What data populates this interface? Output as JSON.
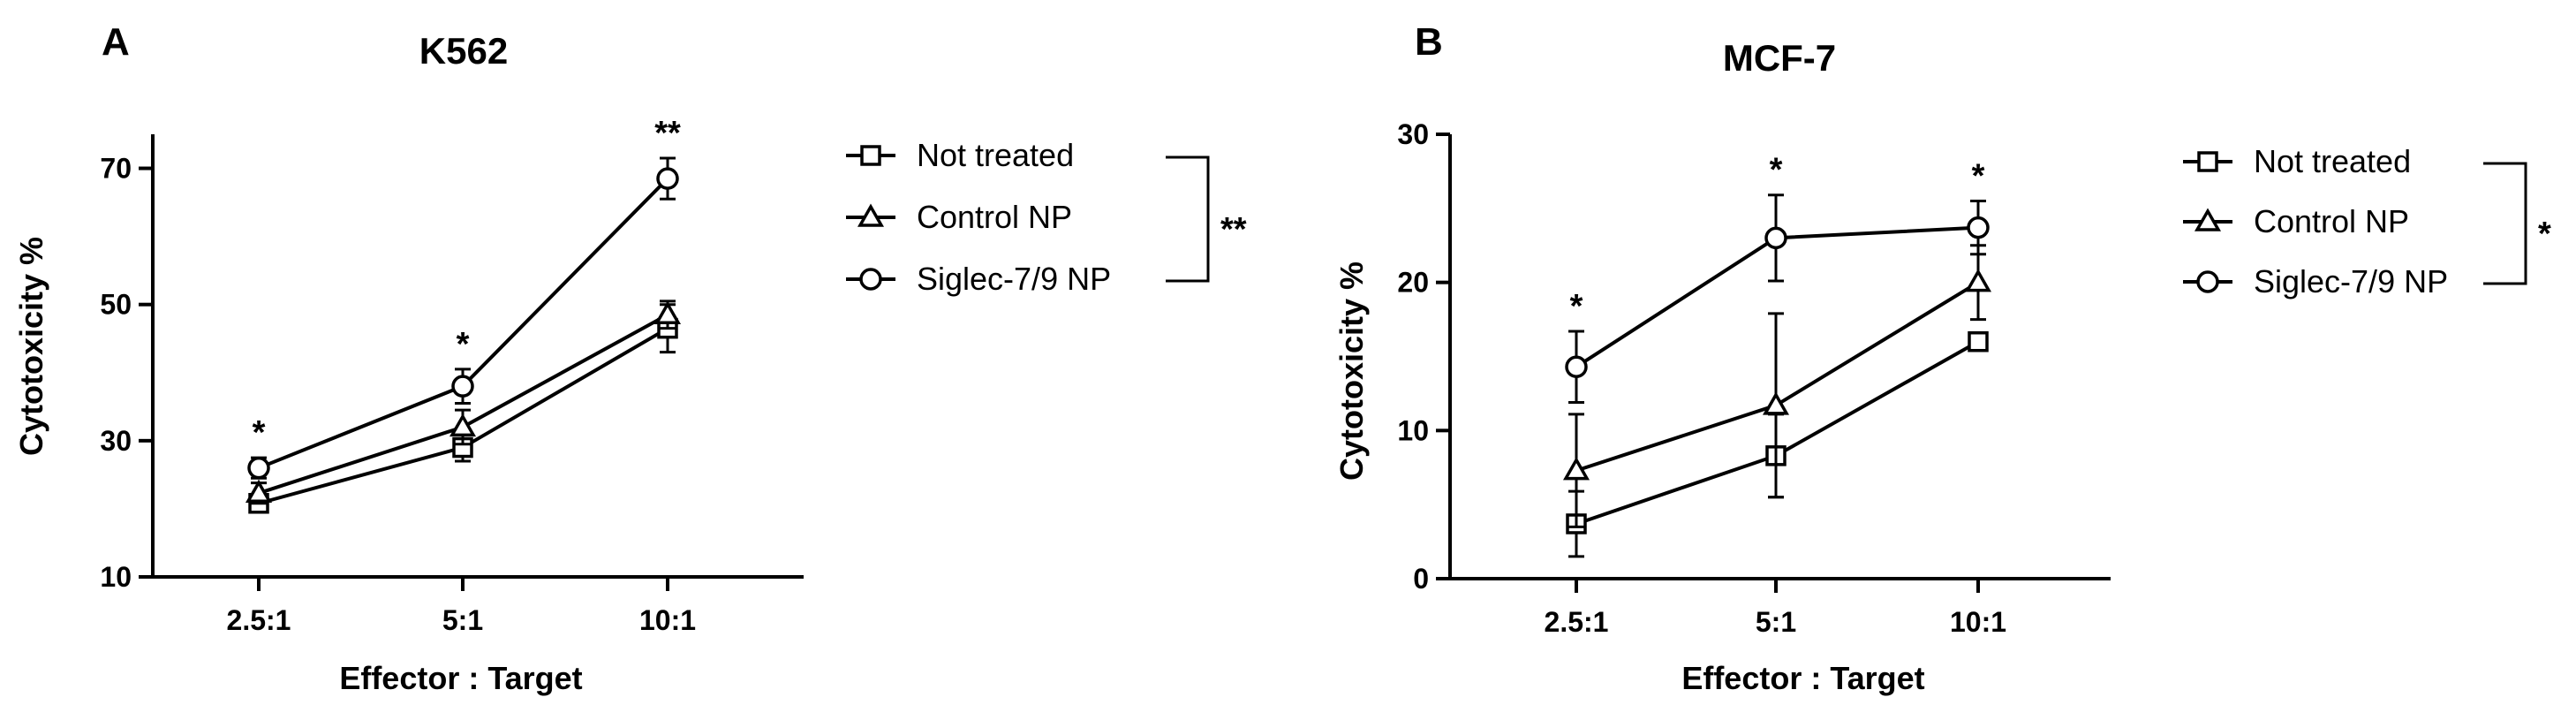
{
  "chart_data": [
    {
      "type": "line",
      "panel": "A",
      "title": "K562",
      "xlabel": "Effector : Target",
      "ylabel": "Cytotoxicity %",
      "categories": [
        "2.5:1",
        "5:1",
        "10:1"
      ],
      "ylim": [
        10,
        75
      ],
      "yticks": [
        "10",
        "30",
        "50",
        "70"
      ],
      "grid": false,
      "legend_position": "right",
      "series": [
        {
          "name": "Not treated",
          "marker": "square",
          "values": [
            20.8,
            29,
            46.5
          ],
          "errors": [
            1.0,
            2.0,
            3.5
          ]
        },
        {
          "name": "Control NP",
          "marker": "triangle",
          "values": [
            22.3,
            32,
            48.5
          ],
          "errors": [
            1.5,
            2.5,
            2.0
          ]
        },
        {
          "name": "Siglec-7/9 NP",
          "marker": "circle",
          "values": [
            26,
            38,
            68.5
          ],
          "errors": [
            1.5,
            2.5,
            3.0
          ]
        }
      ],
      "point_significance": [
        "*",
        "*",
        "**"
      ],
      "legend_significance": "**"
    },
    {
      "type": "line",
      "panel": "B",
      "title": "MCF-7",
      "xlabel": "Effector : Target",
      "ylabel": "Cytotoxicity %",
      "categories": [
        "2.5:1",
        "5:1",
        "10:1"
      ],
      "ylim": [
        0,
        30
      ],
      "yticks": [
        "0",
        "10",
        "20",
        "30"
      ],
      "grid": false,
      "legend_position": "right",
      "series": [
        {
          "name": "Not treated",
          "marker": "square",
          "values": [
            3.7,
            8.3,
            16
          ],
          "errors": [
            2.2,
            2.8,
            0.3
          ]
        },
        {
          "name": "Control NP",
          "marker": "triangle",
          "values": [
            7.3,
            11.7,
            20
          ],
          "errors": [
            3.8,
            6.2,
            2.5
          ]
        },
        {
          "name": "Siglec-7/9 NP",
          "marker": "circle",
          "values": [
            14.3,
            23,
            23.7
          ],
          "errors": [
            2.4,
            2.9,
            1.8
          ]
        }
      ],
      "point_significance": [
        "*",
        "*",
        "*"
      ],
      "legend_significance": "*"
    }
  ]
}
